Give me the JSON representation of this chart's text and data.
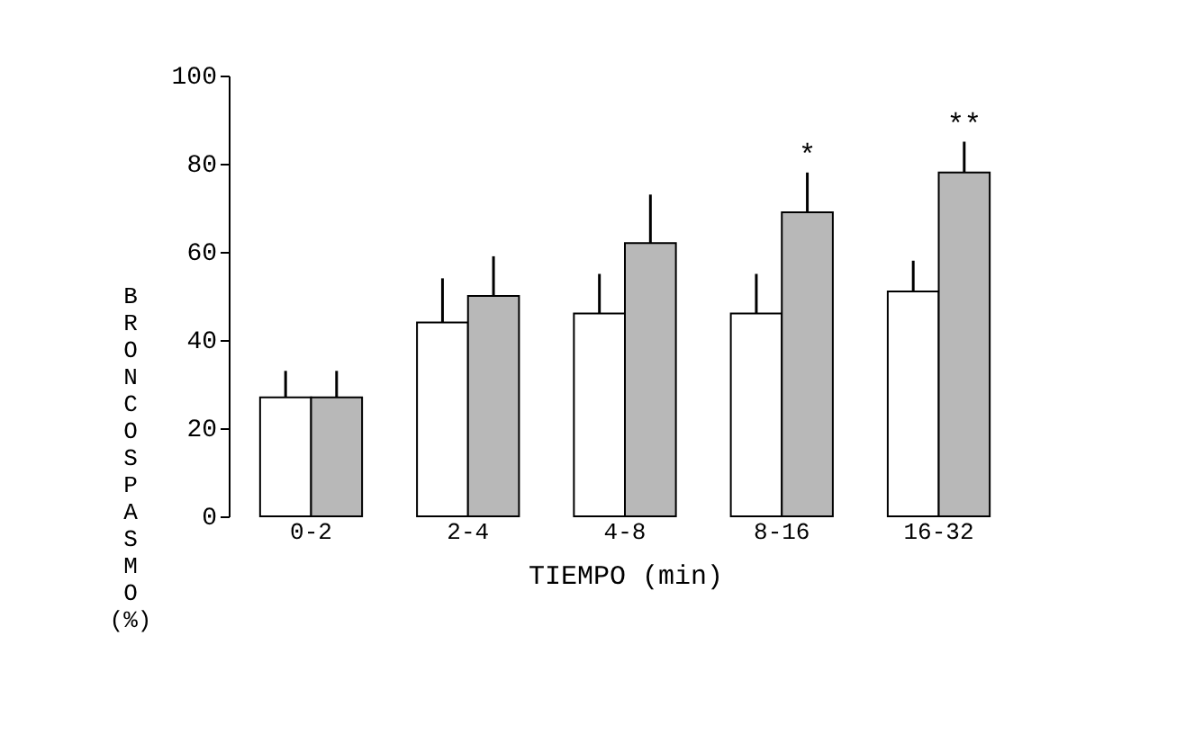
{
  "chart_data": {
    "type": "bar",
    "xlabel": "TIEMPO (min)",
    "ylabel": "BRONCOSPASMO (%)",
    "categories": [
      "0-2",
      "2-4",
      "4-8",
      "8-16",
      "16-32"
    ],
    "series": [
      {
        "color": "#ffffff",
        "values": [
          27,
          44,
          46,
          46,
          51
        ],
        "errors": [
          [
            27,
            33
          ],
          [
            44,
            54
          ],
          [
            46,
            55
          ],
          [
            46,
            55
          ],
          [
            51,
            58
          ]
        ]
      },
      {
        "color": "#b8b8b8",
        "values": [
          27,
          50,
          62,
          69,
          78
        ],
        "errors": [
          [
            27,
            33
          ],
          [
            50,
            59
          ],
          [
            62,
            73
          ],
          [
            69,
            78
          ],
          [
            78,
            85
          ]
        ]
      }
    ],
    "ylim": [
      0,
      100
    ],
    "yticks": [
      0,
      20,
      40,
      60,
      80,
      100
    ],
    "grid": false,
    "annotations": [
      "*",
      "**"
    ]
  }
}
